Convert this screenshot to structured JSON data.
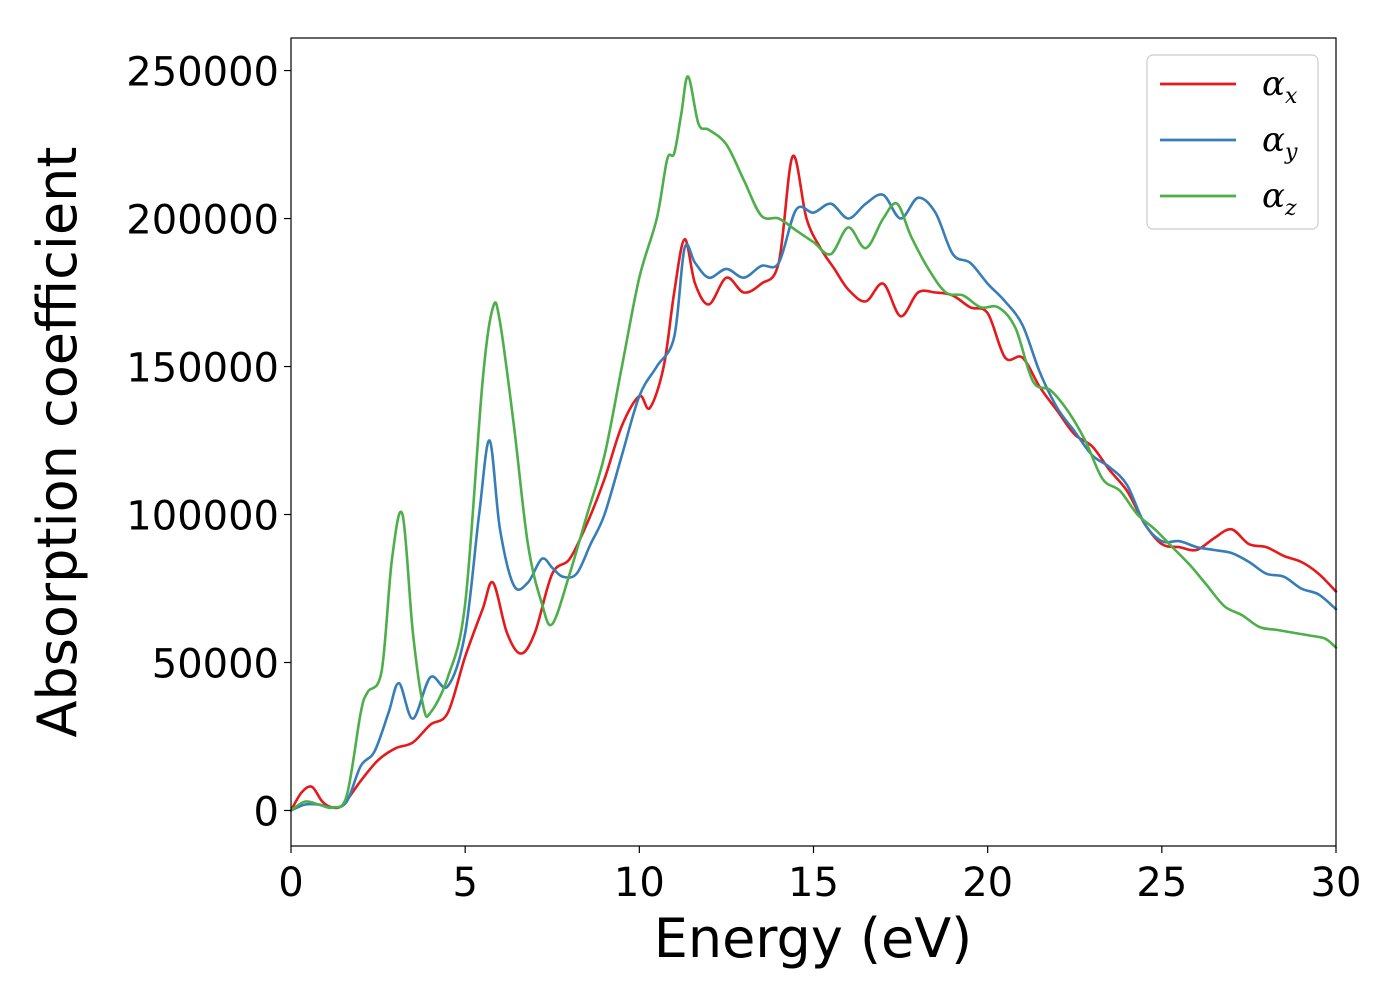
{
  "chart_data": {
    "type": "line",
    "xlabel": "Energy (eV)",
    "ylabel": "Absorption coefficient",
    "xlim": [
      0,
      30
    ],
    "ylim": [
      -12000,
      261000
    ],
    "xticks": [
      0,
      5,
      10,
      15,
      20,
      25,
      30
    ],
    "xtick_labels": [
      "0",
      "5",
      "10",
      "15",
      "20",
      "25",
      "30"
    ],
    "yticks": [
      0,
      50000,
      100000,
      150000,
      200000,
      250000
    ],
    "ytick_labels": [
      "0",
      "50000",
      "100000",
      "150000",
      "200000",
      "250000"
    ],
    "grid": false,
    "legend_position": "top-right",
    "series": [
      {
        "name": "α",
        "subscript": "x",
        "color": "#e41a1c",
        "x": [
          0,
          0.3,
          0.6,
          0.9,
          1.2,
          1.5,
          2.0,
          2.5,
          3.0,
          3.5,
          4.0,
          4.5,
          5.0,
          5.5,
          5.8,
          6.2,
          6.6,
          7.0,
          7.5,
          8.0,
          8.5,
          9.0,
          9.5,
          10.0,
          10.3,
          10.7,
          11.0,
          11.3,
          11.6,
          12.0,
          12.5,
          13.0,
          13.5,
          14.0,
          14.4,
          14.8,
          15.2,
          15.6,
          16.0,
          16.5,
          17.0,
          17.5,
          18.0,
          18.5,
          19.0,
          19.5,
          20.0,
          20.5,
          21.0,
          21.5,
          22.0,
          22.5,
          23.0,
          23.5,
          24.0,
          24.5,
          25.0,
          25.5,
          26.0,
          26.5,
          27.0,
          27.5,
          28.0,
          28.5,
          29.0,
          29.5,
          30.0
        ],
        "y": [
          0,
          6000,
          8000,
          3000,
          1000,
          2000,
          10000,
          17000,
          21000,
          23000,
          29000,
          33000,
          52000,
          68000,
          77000,
          60000,
          53000,
          60000,
          80000,
          85000,
          97000,
          112000,
          130000,
          140000,
          136000,
          150000,
          175000,
          193000,
          178000,
          171000,
          180000,
          175000,
          178000,
          185000,
          221000,
          200000,
          190000,
          183000,
          176000,
          172000,
          178000,
          167000,
          175000,
          175000,
          174000,
          170000,
          168000,
          153000,
          153000,
          143000,
          135000,
          127000,
          123000,
          115000,
          108000,
          97000,
          90000,
          89000,
          88000,
          92000,
          95000,
          90000,
          89000,
          86000,
          84000,
          80000,
          74000
        ]
      },
      {
        "name": "α",
        "subscript": "y",
        "color": "#377eb8",
        "x": [
          0,
          0.4,
          0.8,
          1.2,
          1.6,
          2.0,
          2.4,
          2.8,
          3.1,
          3.5,
          4.0,
          4.5,
          5.0,
          5.4,
          5.7,
          6.0,
          6.4,
          6.8,
          7.2,
          7.5,
          7.8,
          8.2,
          8.6,
          9.0,
          9.5,
          10.0,
          10.5,
          11.0,
          11.3,
          11.6,
          12.0,
          12.5,
          13.0,
          13.5,
          14.0,
          14.5,
          15.0,
          15.5,
          16.0,
          16.5,
          17.0,
          17.5,
          18.0,
          18.5,
          19.0,
          19.5,
          20.0,
          20.5,
          21.0,
          21.5,
          22.0,
          22.5,
          23.0,
          23.5,
          24.0,
          24.5,
          25.0,
          25.5,
          26.0,
          26.5,
          27.0,
          27.5,
          28.0,
          28.5,
          29.0,
          29.5,
          30.0
        ],
        "y": [
          0,
          2000,
          2000,
          1000,
          3000,
          15000,
          20000,
          33000,
          43000,
          31000,
          45000,
          42000,
          60000,
          100000,
          125000,
          95000,
          76000,
          77000,
          85000,
          82000,
          79000,
          80000,
          90000,
          100000,
          120000,
          140000,
          150000,
          160000,
          190000,
          185000,
          180000,
          183000,
          180000,
          184000,
          185000,
          203000,
          202000,
          205000,
          200000,
          205000,
          208000,
          200000,
          207000,
          202000,
          188000,
          185000,
          178000,
          172000,
          164000,
          148000,
          136000,
          128000,
          120000,
          116000,
          110000,
          97000,
          91000,
          91000,
          89000,
          88000,
          87000,
          84000,
          80000,
          79000,
          75000,
          73000,
          68000
        ]
      },
      {
        "name": "α",
        "subscript": "z",
        "color": "#4daf4a",
        "x": [
          0,
          0.4,
          0.8,
          1.2,
          1.6,
          2.0,
          2.2,
          2.6,
          2.9,
          3.2,
          3.5,
          3.8,
          4.0,
          4.5,
          5.0,
          5.5,
          5.8,
          6.0,
          6.4,
          6.8,
          7.2,
          7.5,
          8.0,
          8.5,
          9.0,
          9.5,
          10.0,
          10.5,
          10.8,
          11.0,
          11.2,
          11.4,
          11.7,
          12.0,
          12.5,
          13.0,
          13.5,
          14.0,
          14.5,
          15.0,
          15.5,
          16.0,
          16.5,
          17.0,
          17.4,
          17.8,
          18.3,
          18.8,
          19.3,
          19.8,
          20.3,
          20.8,
          21.3,
          21.8,
          22.3,
          22.8,
          23.3,
          23.8,
          24.3,
          24.8,
          25.3,
          25.8,
          26.3,
          26.8,
          27.3,
          27.8,
          28.3,
          28.8,
          29.3,
          29.7,
          30.0
        ],
        "y": [
          0,
          3000,
          2000,
          1000,
          5000,
          33000,
          40000,
          47000,
          85000,
          100000,
          60000,
          35000,
          33000,
          45000,
          70000,
          145000,
          170000,
          165000,
          130000,
          90000,
          70000,
          63000,
          80000,
          100000,
          120000,
          150000,
          180000,
          200000,
          220000,
          222000,
          235000,
          248000,
          232000,
          230000,
          225000,
          213000,
          201000,
          200000,
          196000,
          192000,
          188000,
          197000,
          190000,
          200000,
          205000,
          194000,
          183000,
          175000,
          174000,
          170000,
          170000,
          163000,
          145000,
          142000,
          135000,
          125000,
          112000,
          108000,
          100000,
          95000,
          89000,
          83000,
          76000,
          69000,
          66000,
          62000,
          61000,
          60000,
          59000,
          58000,
          55000
        ]
      }
    ]
  }
}
